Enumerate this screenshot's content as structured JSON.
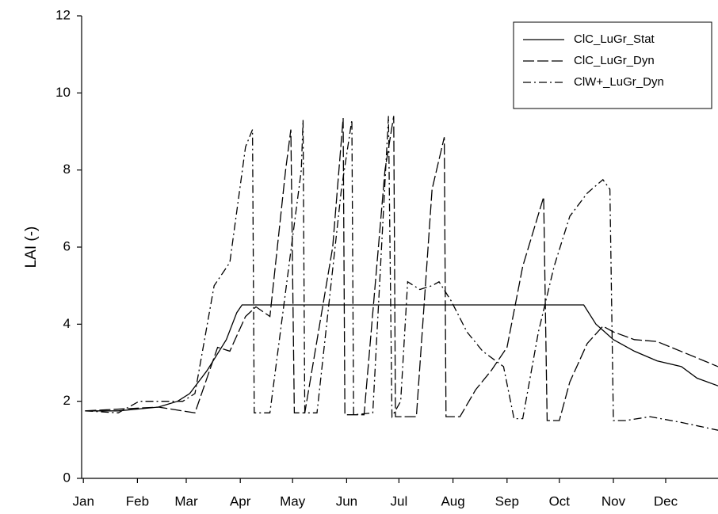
{
  "chart_data": {
    "type": "line",
    "y_label": "LAI (-)",
    "xlim": [
      0,
      365
    ],
    "ylim": [
      0,
      12
    ],
    "yticks": [
      0,
      2,
      4,
      6,
      8,
      10,
      12
    ],
    "xticks": [
      {
        "value": 1,
        "label": "Jan"
      },
      {
        "value": 32,
        "label": "Feb"
      },
      {
        "value": 60,
        "label": "Mar"
      },
      {
        "value": 91,
        "label": "Apr"
      },
      {
        "value": 121,
        "label": "May"
      },
      {
        "value": 152,
        "label": "Jun"
      },
      {
        "value": 182,
        "label": "Jul"
      },
      {
        "value": 213,
        "label": "Aug"
      },
      {
        "value": 244,
        "label": "Sep"
      },
      {
        "value": 274,
        "label": "Oct"
      },
      {
        "value": 305,
        "label": "Nov"
      },
      {
        "value": 335,
        "label": "Dec"
      }
    ],
    "legend": "upper right",
    "series": [
      {
        "name": "ClC_LuGr_Stat",
        "color": "#000000",
        "dash": "solid",
        "x": [
          2,
          21,
          44,
          55,
          62,
          72,
          83,
          89,
          92,
          288,
          295,
          305,
          317,
          330,
          344,
          353,
          365
        ],
        "values": [
          1.75,
          1.75,
          1.85,
          2.0,
          2.2,
          2.8,
          3.6,
          4.3,
          4.5,
          4.5,
          4.0,
          3.6,
          3.3,
          3.05,
          2.9,
          2.6,
          2.4
        ]
      },
      {
        "name": "ClC_LuGr_Dyn",
        "color": "#000000",
        "dash": "long",
        "x": [
          2,
          44,
          65,
          78,
          85,
          94,
          100,
          108,
          117,
          120,
          122,
          128,
          144,
          150,
          151,
          162,
          174,
          179,
          180,
          192,
          201,
          208,
          209,
          217,
          226,
          235,
          244,
          253,
          265,
          267,
          274,
          280,
          290,
          299,
          305,
          317,
          330,
          349,
          365
        ],
        "values": [
          1.75,
          1.85,
          1.7,
          3.4,
          3.3,
          4.2,
          4.45,
          4.2,
          8.0,
          9.05,
          1.7,
          1.7,
          6.0,
          9.35,
          1.65,
          1.65,
          8.0,
          9.4,
          1.6,
          1.6,
          7.5,
          8.85,
          1.6,
          1.6,
          2.3,
          2.8,
          3.4,
          5.5,
          7.3,
          1.5,
          1.5,
          2.5,
          3.5,
          3.95,
          3.8,
          3.6,
          3.55,
          3.2,
          2.9
        ]
      },
      {
        "name": "ClW+_LuGr_Dyn",
        "color": "#000000",
        "dash": "dashdot",
        "x": [
          2,
          21,
          33,
          58,
          65,
          76,
          85,
          94,
          98,
          99,
          108,
          126,
          127,
          128,
          135,
          149,
          155,
          156,
          167,
          176,
          178,
          183,
          187,
          194,
          201,
          205,
          212,
          221,
          230,
          242,
          248,
          253,
          262,
          271,
          280,
          290,
          299,
          303,
          305,
          312,
          326,
          344,
          365
        ],
        "values": [
          1.75,
          1.7,
          2.0,
          2.0,
          2.2,
          5.0,
          5.6,
          8.6,
          9.05,
          1.7,
          1.7,
          8.0,
          9.3,
          1.7,
          1.7,
          7.5,
          9.3,
          1.65,
          1.7,
          9.4,
          1.6,
          2.0,
          5.1,
          4.9,
          5.0,
          5.1,
          4.6,
          3.8,
          3.3,
          2.9,
          1.55,
          1.55,
          3.8,
          5.5,
          6.8,
          7.4,
          7.75,
          7.5,
          1.5,
          1.5,
          1.6,
          1.45,
          1.25
        ]
      }
    ]
  }
}
